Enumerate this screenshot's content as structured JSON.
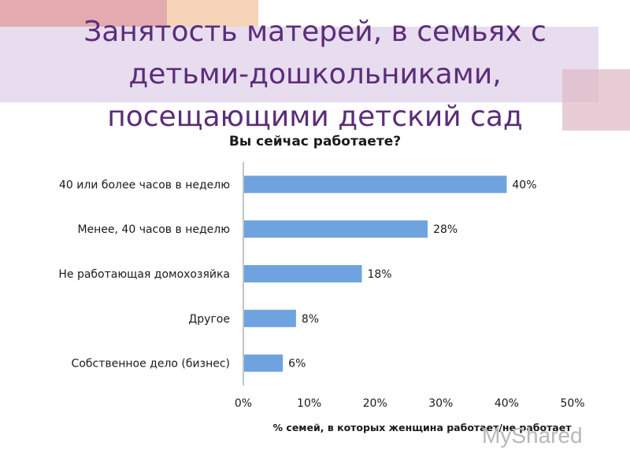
{
  "slide": {
    "title_lines": [
      "Занятость матерей, в семьях с",
      "детьми-дошкольниками,",
      "посещающими детский сад"
    ]
  },
  "watermark": "MyShared",
  "colors": {
    "bar": "#6ea3e0",
    "title": "#5b2d7a",
    "text": "#1a1a1a",
    "axis": "#888888"
  },
  "chart_data": {
    "type": "bar",
    "orientation": "horizontal",
    "title": "Вы сейчас работаете?",
    "xlabel": "% семей, в которых женщина работает/не работает",
    "ylabel": "",
    "categories": [
      "40 или более часов в неделю",
      "Менее, 40 часов в неделю",
      "Не работающая домохозяйка",
      "Другое",
      "Собственное дело (бизнес)"
    ],
    "values": [
      40,
      28,
      18,
      8,
      6
    ],
    "value_labels": [
      "40%",
      "28%",
      "18%",
      "8%",
      "6%"
    ],
    "xlim": [
      0,
      50
    ],
    "x_ticks": [
      0,
      10,
      20,
      30,
      40,
      50
    ],
    "x_tick_labels": [
      "0%",
      "10%",
      "20%",
      "30%",
      "40%",
      "50%"
    ],
    "grid": false,
    "legend": "none"
  }
}
